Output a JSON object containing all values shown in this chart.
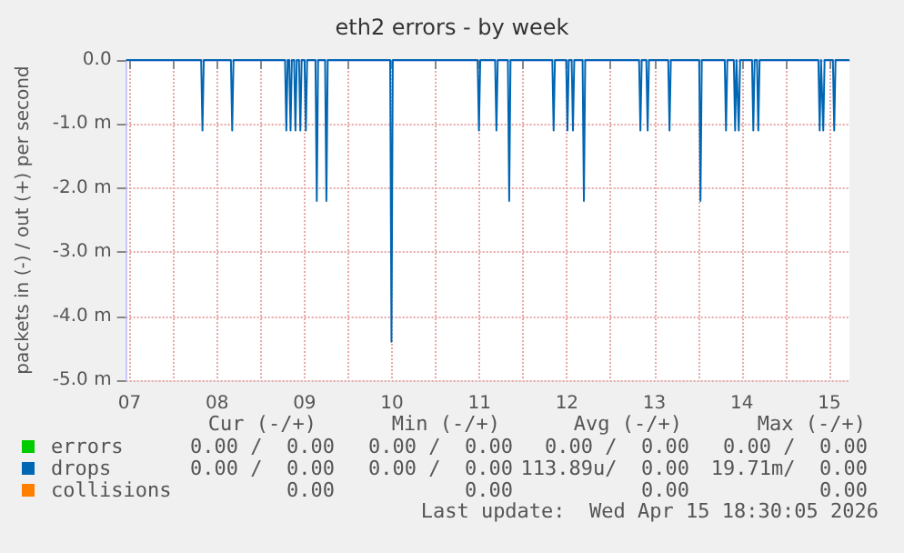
{
  "chart_data": {
    "type": "line",
    "title": "eth2 errors - by week",
    "ylabel": "packets in (-) / out (+) per second",
    "x": [
      7.46,
      8.318,
      8.333,
      8.348,
      8.658,
      8.673,
      8.688,
      9.277,
      9.292,
      9.307,
      9.325,
      9.34,
      9.355,
      9.381,
      9.396,
      9.411,
      9.437,
      9.452,
      9.467,
      9.5,
      9.515,
      9.53,
      9.625,
      9.64,
      9.655,
      9.735,
      9.75,
      9.765,
      10.479,
      10.494,
      10.509,
      11.479,
      11.494,
      11.509,
      11.679,
      11.694,
      11.709,
      11.825,
      11.84,
      11.855,
      12.333,
      12.348,
      12.363,
      12.491,
      12.506,
      12.521,
      12.554,
      12.569,
      12.584,
      12.679,
      12.694,
      12.709,
      13.325,
      13.34,
      13.355,
      13.408,
      13.423,
      13.438,
      13.658,
      13.673,
      13.688,
      14.012,
      14.027,
      14.042,
      14.304,
      14.319,
      14.334,
      14.408,
      14.423,
      14.438,
      14.45,
      14.465,
      14.48,
      14.616,
      14.631,
      14.646,
      14.673,
      14.688,
      14.703,
      15.375,
      15.39,
      15.405,
      15.416,
      15.431,
      15.446,
      15.541,
      15.556,
      15.571,
      15.73
    ],
    "series": [
      {
        "name": "errors",
        "color": "#00cc00",
        "values": [
          null,
          null,
          null,
          null,
          null,
          null,
          null,
          null,
          null,
          null,
          null,
          null,
          null,
          null,
          null,
          null,
          null,
          null,
          null,
          null,
          null,
          null,
          null,
          null,
          null,
          null,
          null,
          null,
          null,
          null,
          null,
          null,
          null,
          null,
          null,
          null,
          null,
          null,
          null,
          null,
          null,
          null,
          null,
          null,
          null,
          null,
          null,
          null,
          null,
          null,
          null,
          null,
          null,
          null,
          null,
          null,
          null,
          null,
          null,
          null,
          null,
          null,
          null,
          null,
          null,
          null,
          null,
          null,
          null,
          null,
          null,
          null,
          null,
          null,
          null,
          null,
          null,
          null,
          null,
          null,
          null,
          null,
          null,
          null,
          null,
          null,
          null,
          null,
          null
        ]
      },
      {
        "name": "drops",
        "color": "#0066b3",
        "values": [
          0,
          0,
          -1.1,
          0,
          0,
          -1.1,
          0,
          0,
          -1.1,
          0,
          0,
          -1.1,
          0,
          0,
          -1.1,
          0,
          0,
          -1.1,
          0,
          0,
          -1.1,
          0,
          0,
          -2.2,
          0,
          0,
          -2.2,
          0,
          0,
          -4.4,
          0,
          0,
          -1.1,
          0,
          0,
          -1.1,
          0,
          0,
          -2.2,
          0,
          0,
          -1.1,
          0,
          0,
          -1.1,
          0,
          0,
          -1.1,
          0,
          0,
          -2.2,
          0,
          0,
          -1.1,
          0,
          0,
          -1.1,
          0,
          0,
          -1.1,
          0,
          0,
          -2.2,
          0,
          0,
          -1.1,
          0,
          0,
          -1.1,
          0,
          0,
          -1.1,
          0,
          0,
          -1.1,
          0,
          0,
          -1.1,
          0,
          0,
          -1.1,
          0,
          0,
          -1.1,
          0,
          0,
          -1.1,
          0,
          0
        ]
      },
      {
        "name": "collisions",
        "color": "#ff8000",
        "values": [
          null,
          null,
          null,
          null,
          null,
          null,
          null,
          null,
          null,
          null,
          null,
          null,
          null,
          null,
          null,
          null,
          null,
          null,
          null,
          null,
          null,
          null,
          null,
          null,
          null,
          null,
          null,
          null,
          null,
          null,
          null,
          null,
          null,
          null,
          null,
          null,
          null,
          null,
          null,
          null,
          null,
          null,
          null,
          null,
          null,
          null,
          null,
          null,
          null,
          null,
          null,
          null,
          null,
          null,
          null,
          null,
          null,
          null,
          null,
          null,
          null,
          null,
          null,
          null,
          null,
          null,
          null,
          null,
          null,
          null,
          null,
          null,
          null,
          null,
          null,
          null,
          null,
          null,
          null,
          null,
          null,
          null,
          null,
          null,
          null,
          null,
          null,
          null,
          null
        ]
      }
    ],
    "xlim": [
      7.46,
      15.73
    ],
    "xticks": [
      {
        "value": 7.5,
        "label": "07"
      },
      {
        "value": 8,
        "label": null
      },
      {
        "value": 8.5,
        "label": "08"
      },
      {
        "value": 9,
        "label": null
      },
      {
        "value": 9.5,
        "label": "09"
      },
      {
        "value": 10,
        "label": null
      },
      {
        "value": 10.5,
        "label": "10"
      },
      {
        "value": 11,
        "label": null
      },
      {
        "value": 11.5,
        "label": "11"
      },
      {
        "value": 12,
        "label": null
      },
      {
        "value": 12.5,
        "label": "12"
      },
      {
        "value": 13,
        "label": null
      },
      {
        "value": 13.5,
        "label": "13"
      },
      {
        "value": 14,
        "label": null
      },
      {
        "value": 14.5,
        "label": "14"
      },
      {
        "value": 15,
        "label": null
      },
      {
        "value": 15.5,
        "label": "15"
      }
    ],
    "ylim": [
      -5,
      0
    ],
    "yticks": [
      {
        "value": -5,
        "label": "-5.0 m"
      },
      {
        "value": -4,
        "label": "-4.0 m"
      },
      {
        "value": -3,
        "label": "-3.0 m"
      },
      {
        "value": -2,
        "label": "-2.0 m"
      },
      {
        "value": -1,
        "label": "-1.0 m"
      },
      {
        "value": 0,
        "label": "0.0"
      }
    ],
    "grid": true,
    "legend": "bottom",
    "marker": "none",
    "line_style": "solid",
    "annotations": [
      "Cur (-/+)",
      "Min (-/+)",
      "Avg (-/+)",
      "Max (-/+)",
      "0.00 /  0.00",
      "0.00 /  0.00",
      "0.00 /  0.00",
      "0.00 /  0.00",
      "0.00 /  0.00",
      "0.00 /  0.00",
      "113.89u/  0.00",
      "19.71m/  0.00",
      "0.00",
      "0.00",
      "0.00",
      "0.00",
      "Last update:  Wed Apr 15 18:30:05 2026"
    ]
  }
}
